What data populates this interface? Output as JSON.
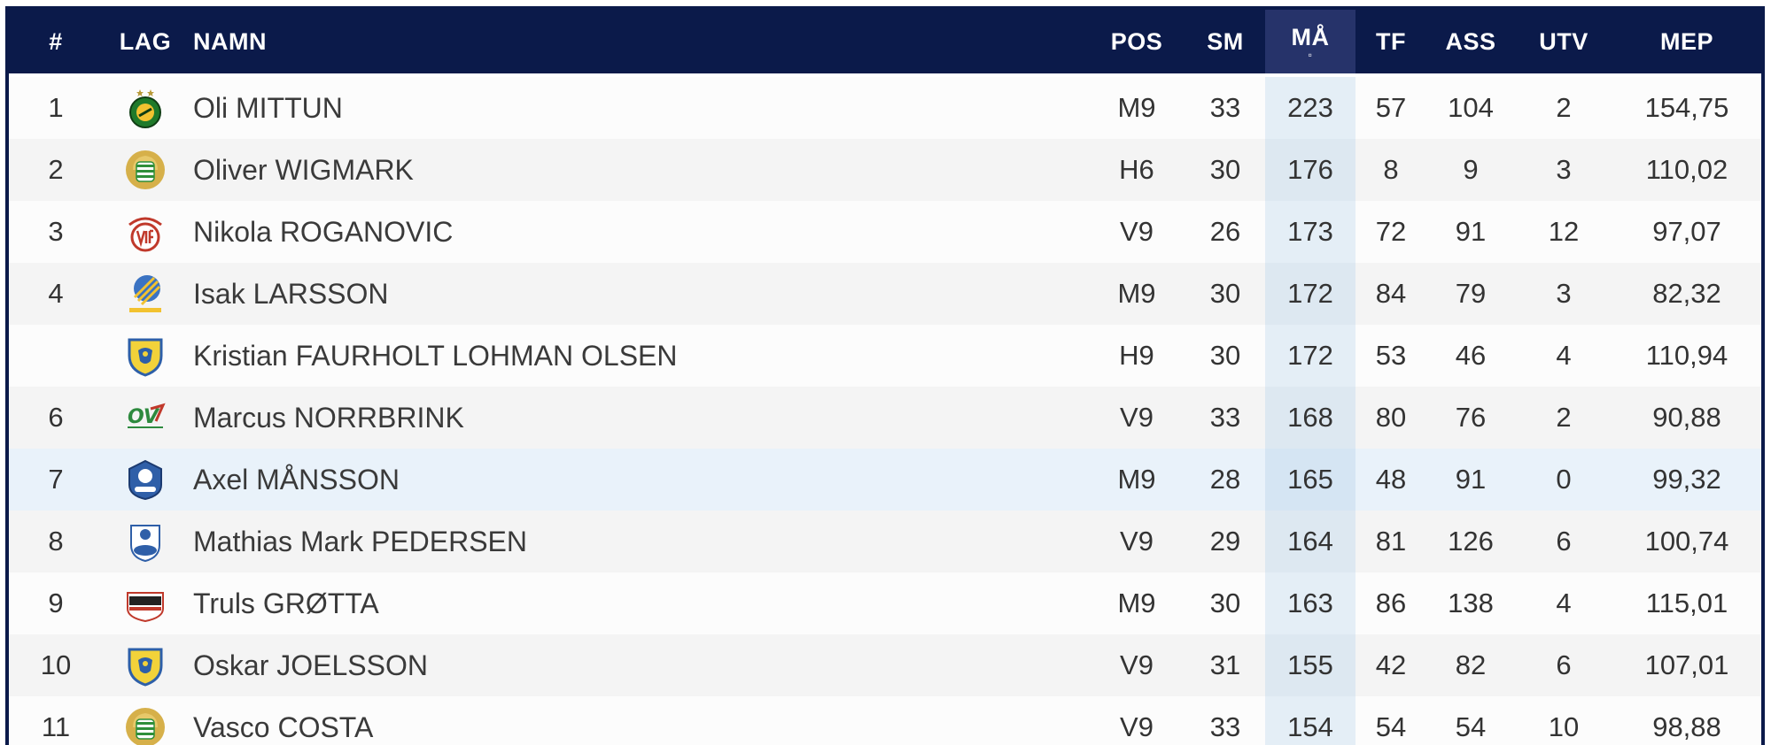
{
  "header": {
    "rank": "#",
    "team": "LAG",
    "name": "NAMN",
    "pos": "POS",
    "sm": "SM",
    "ma": "MÅ",
    "tf": "TF",
    "ass": "ASS",
    "utv": "UTV",
    "mep": "MEP"
  },
  "colors": {
    "header_bg": "#0b1a4a",
    "sorted_header_bg": "#26336a",
    "sorted_col_bg": "#e4eef6",
    "highlight_row_bg": "#e9f2fa"
  },
  "rows": [
    {
      "rank": "1",
      "logo": "team-logo-green-gold-stars",
      "name": "Oli MITTUN",
      "pos": "M9",
      "sm": "33",
      "ma": "223",
      "tf": "57",
      "ass": "104",
      "utv": "2",
      "mep": "154,75"
    },
    {
      "rank": "2",
      "logo": "team-logo-green-white-gold",
      "name": "Oliver WIGMARK",
      "pos": "H6",
      "sm": "30",
      "ma": "176",
      "tf": "8",
      "ass": "9",
      "utv": "3",
      "mep": "110,02"
    },
    {
      "rank": "3",
      "logo": "team-logo-eskilstuna-red",
      "name": "Nikola ROGANOVIC",
      "pos": "V9",
      "sm": "26",
      "ma": "173",
      "tf": "72",
      "ass": "91",
      "utv": "12",
      "mep": "97,07"
    },
    {
      "rank": "4",
      "logo": "team-logo-karlskrona-blue-yellow",
      "name": "Isak LARSSON",
      "pos": "M9",
      "sm": "30",
      "ma": "172",
      "tf": "84",
      "ass": "79",
      "utv": "3",
      "mep": "82,32"
    },
    {
      "rank": "",
      "logo": "team-logo-yellow-lion-shield",
      "name": "Kristian FAURHOLT LOHMAN OLSEN",
      "pos": "H9",
      "sm": "30",
      "ma": "172",
      "tf": "53",
      "ass": "46",
      "utv": "4",
      "mep": "110,94"
    },
    {
      "rank": "6",
      "logo": "team-logo-ov-green-red",
      "name": "Marcus NORRBRINK",
      "pos": "V9",
      "sm": "33",
      "ma": "168",
      "tf": "80",
      "ass": "76",
      "utv": "2",
      "mep": "90,88"
    },
    {
      "rank": "7",
      "logo": "team-logo-blue-1899-crest",
      "name": "Axel MÅNSSON",
      "pos": "M9",
      "sm": "28",
      "ma": "165",
      "tf": "48",
      "ass": "91",
      "utv": "0",
      "mep": "99,32"
    },
    {
      "rank": "8",
      "logo": "team-logo-amo-blue",
      "name": "Mathias Mark PEDERSEN",
      "pos": "V9",
      "sm": "29",
      "ma": "164",
      "tf": "81",
      "ass": "126",
      "utv": "6",
      "mep": "100,74"
    },
    {
      "rank": "9",
      "logo": "team-logo-hk-malmo",
      "name": "Truls GRØTTA",
      "pos": "M9",
      "sm": "30",
      "ma": "163",
      "tf": "86",
      "ass": "138",
      "utv": "4",
      "mep": "115,01"
    },
    {
      "rank": "10",
      "logo": "team-logo-yellow-lion-shield",
      "name": "Oskar JOELSSON",
      "pos": "V9",
      "sm": "31",
      "ma": "155",
      "tf": "42",
      "ass": "82",
      "utv": "6",
      "mep": "107,01"
    },
    {
      "rank": "11",
      "logo": "team-logo-green-white-gold",
      "name": "Vasco COSTA",
      "pos": "V9",
      "sm": "33",
      "ma": "154",
      "tf": "54",
      "ass": "54",
      "utv": "10",
      "mep": "98,88"
    }
  ]
}
